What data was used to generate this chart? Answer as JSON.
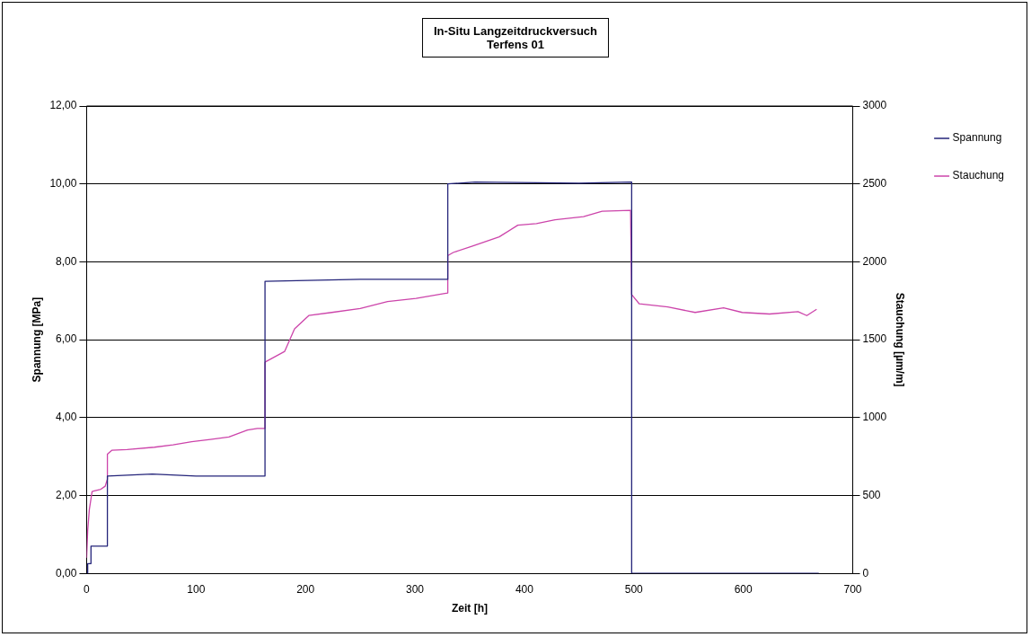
{
  "chart_data": {
    "type": "line",
    "title": "In-Situ Langzeitdruckversuch\nTerfens 01",
    "xlabel": "Zeit [h]",
    "ylabel": "Spannung [MPa]",
    "y2label": "Stauchung [µm/m]",
    "xlim": [
      0,
      700
    ],
    "xticks": [
      0,
      100,
      200,
      300,
      400,
      500,
      600,
      700
    ],
    "ylim": [
      0,
      12
    ],
    "yticks": [
      {
        "value": 0,
        "label": "0,00"
      },
      {
        "value": 2,
        "label": "2,00"
      },
      {
        "value": 4,
        "label": "4,00"
      },
      {
        "value": 6,
        "label": "6,00"
      },
      {
        "value": 8,
        "label": "8,00"
      },
      {
        "value": 10,
        "label": "10,00"
      },
      {
        "value": 12,
        "label": "12,00"
      }
    ],
    "y2lim": [
      0,
      3000
    ],
    "y2ticks": [
      0,
      500,
      1000,
      1500,
      2000,
      2500,
      3000
    ],
    "grid": "y",
    "legend": "top right",
    "marker": "none",
    "line_style": "solid",
    "series": [
      {
        "name": "Spannung",
        "color": "#24247a",
        "x": [
          0,
          1,
          1,
          4,
          4,
          19,
          19,
          60,
          100,
          163,
          163,
          250,
          330,
          330,
          355,
          450,
          498,
          498,
          669
        ],
        "values": [
          0,
          0,
          0.25,
          0.25,
          0.7,
          0.7,
          2.5,
          2.55,
          2.5,
          2.5,
          7.5,
          7.55,
          7.55,
          10,
          10.05,
          10.02,
          10.05,
          0,
          0
        ]
      },
      {
        "name": "Stauchung",
        "color": "#cc44aa",
        "axis": "y2",
        "x": [
          0,
          1,
          2.5,
          5,
          7,
          13,
          17,
          19,
          19,
          23,
          37,
          62,
          79,
          96,
          113,
          130,
          147,
          156,
          163,
          163,
          164,
          181,
          190,
          203,
          224,
          250,
          275,
          301,
          326,
          330,
          330,
          335,
          352,
          377,
          394,
          411,
          428,
          454,
          471,
          497,
          498,
          505,
          531,
          556,
          582,
          599,
          624,
          650,
          658,
          667
        ],
        "values": [
          100,
          275,
          410,
          525,
          530,
          540,
          560,
          605,
          765,
          790,
          795,
          810,
          825,
          845,
          860,
          875,
          920,
          930,
          930,
          1355,
          1360,
          1425,
          1570,
          1655,
          1675,
          1700,
          1745,
          1765,
          1795,
          1800,
          2040,
          2060,
          2100,
          2160,
          2235,
          2245,
          2270,
          2290,
          2325,
          2330,
          1790,
          1730,
          1710,
          1675,
          1705,
          1675,
          1665,
          1680,
          1655,
          1695
        ]
      }
    ]
  }
}
